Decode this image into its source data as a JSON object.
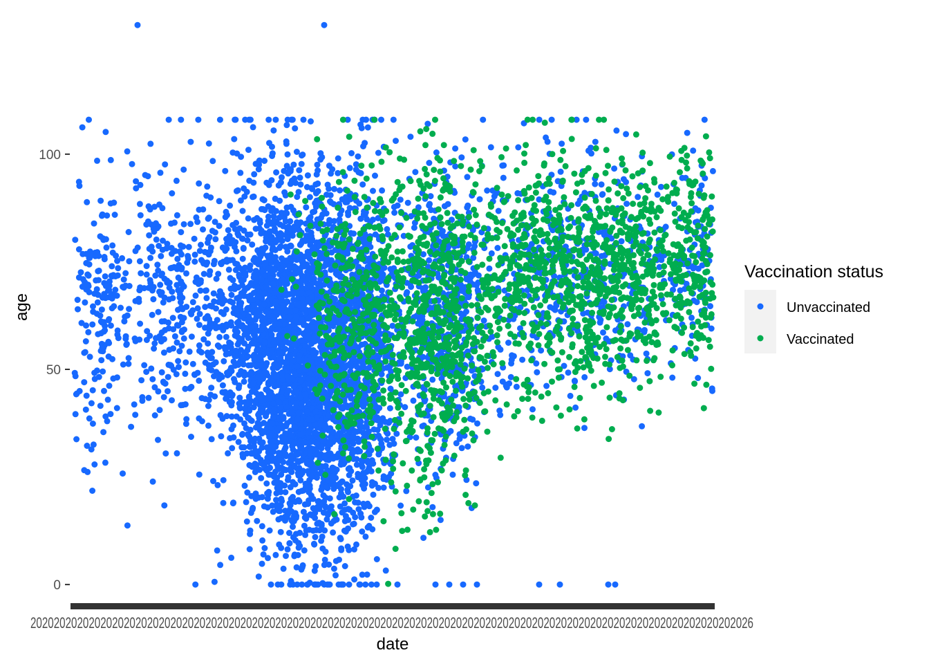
{
  "chart_data": {
    "type": "scatter",
    "title": "",
    "xlabel": "date",
    "ylabel": "age",
    "ylim": [
      -4,
      131
    ],
    "y_ticks": [
      0,
      50,
      100
    ],
    "x_tick_labels_text": "2020202020202020202020202020202020202020202020202020202020202020202020202020202020202020202020202020202020202020202020202026",
    "grid": false,
    "legend": {
      "title": "Vaccination status",
      "placement": "right"
    },
    "series": [
      {
        "name": "Unvaccinated",
        "color": "#1769ff"
      },
      {
        "name": "Vaccinated",
        "color": "#00ad4f"
      }
    ]
  }
}
